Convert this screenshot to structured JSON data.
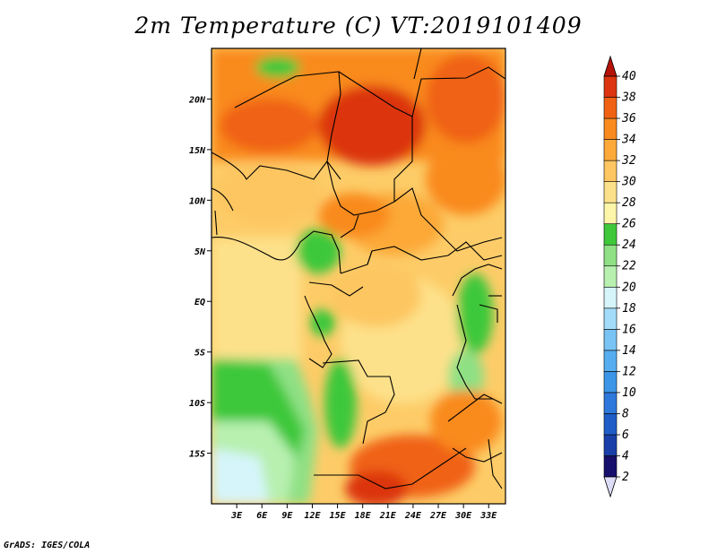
{
  "title": "2m Temperature (C) VT:2019101409",
  "credit": "GrADS: IGES/COLA",
  "map": {
    "lon_ticks": [
      "3E",
      "6E",
      "9E",
      "12E",
      "15E",
      "18E",
      "21E",
      "24E",
      "27E",
      "30E",
      "33E"
    ],
    "lat_ticks": [
      "20N",
      "15N",
      "10N",
      "5N",
      "EQ",
      "5S",
      "10S",
      "15S"
    ],
    "lon_range": [
      0,
      35
    ],
    "lat_range": [
      -20,
      25
    ]
  },
  "colorbar": {
    "labels": [
      "2",
      "4",
      "6",
      "8",
      "10",
      "12",
      "14",
      "16",
      "18",
      "20",
      "22",
      "24",
      "26",
      "28",
      "30",
      "32",
      "34",
      "36",
      "38",
      "40"
    ],
    "colors": [
      "#160f6b",
      "#1a3fa8",
      "#1f5dc7",
      "#2e78dc",
      "#3c96e8",
      "#56aef0",
      "#79c4f5",
      "#a3dcf8",
      "#d6f5fb",
      "#b8f0b0",
      "#8fe084",
      "#3ec83a",
      "#fdf5a8",
      "#fde18a",
      "#fdc660",
      "#fca938",
      "#f98a1e",
      "#f06212",
      "#dc3510",
      "#b51208"
    ]
  }
}
